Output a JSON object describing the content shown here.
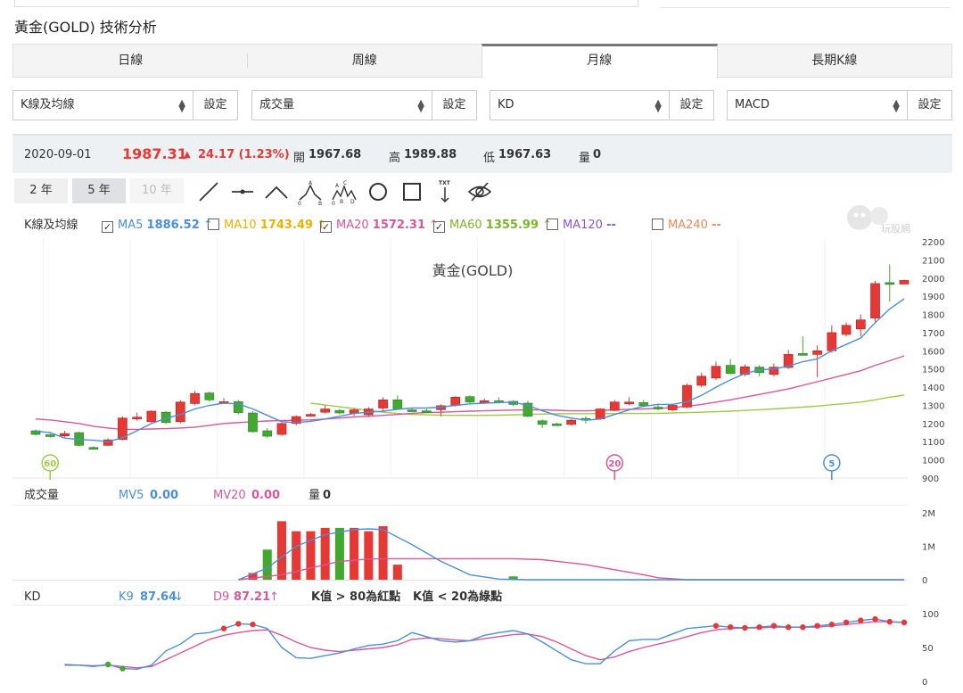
{
  "page_title": "黃金(GOLD) 技術分析",
  "tabs": [
    {
      "label": "日線",
      "active": false
    },
    {
      "label": "周線",
      "active": false
    },
    {
      "label": "月線",
      "active": true
    },
    {
      "label": "長期K線",
      "active": false
    }
  ],
  "selectors": [
    {
      "value": "K線及均線",
      "button": "設定"
    },
    {
      "value": "成交量",
      "button": "設定"
    },
    {
      "value": "KD",
      "button": "設定"
    },
    {
      "value": "MACD",
      "button": "設定"
    }
  ],
  "info": {
    "date": "2020-09-01",
    "price": "1987.31",
    "change": "24.17 (1.23%)",
    "open_label": "開",
    "open": "1967.68",
    "high_label": "高",
    "high": "1989.88",
    "low_label": "低",
    "low": "1967.63",
    "vol_label": "量",
    "vol": "0"
  },
  "periods": [
    {
      "label": "2 年",
      "state": "normal"
    },
    {
      "label": "5 年",
      "state": "active"
    },
    {
      "label": "10 年",
      "state": "disabled"
    }
  ],
  "tools": [
    "line-tool-icon",
    "horizontal-line-tool-icon",
    "peak-tool-icon",
    "abc-wave-tool-icon",
    "abcde-wave-tool-icon",
    "circle-tool-icon",
    "rectangle-tool-icon",
    "text-tool-icon",
    "hide-eye-icon"
  ],
  "tool_labels": {
    "txt": "TXT",
    "a": "A",
    "b": "B",
    "c": "C",
    "d": "D",
    "zero": "0"
  },
  "watermark": "玩股網",
  "k_legend": {
    "label": "K線及均線",
    "ma": [
      {
        "name": "MA5",
        "value": "1886.52",
        "arrow": "↑",
        "checked": true,
        "color": "#4a8fd8"
      },
      {
        "name": "MA10",
        "value": "1743.49",
        "arrow": "↑",
        "checked": false,
        "color": "#e8b300"
      },
      {
        "name": "MA20",
        "value": "1572.31",
        "arrow": "↑",
        "checked": true,
        "color": "#d6579a"
      },
      {
        "name": "MA60",
        "value": "1355.99",
        "arrow": "↑",
        "checked": true,
        "color": "#7ab52a"
      },
      {
        "name": "MA120",
        "value": "--",
        "arrow": "",
        "checked": false,
        "color": "#8a57c7"
      },
      {
        "name": "MA240",
        "value": "--",
        "arrow": "",
        "checked": false,
        "color": "#ea8a5a"
      }
    ]
  },
  "vol_legend": {
    "label": "成交量",
    "mv5_name": "MV5",
    "mv5": "0.00",
    "mv20_name": "MV20",
    "mv20": "0.00",
    "vol_name": "量",
    "vol": "0"
  },
  "kd_legend": {
    "label": "KD",
    "k_name": "K9",
    "k": "87.64",
    "k_arrow": "↓",
    "d_name": "D9",
    "d": "87.21",
    "d_arrow": "↑",
    "note_red": "K值 > 80為紅點",
    "note_green": "K值 < 20為綠點"
  },
  "colors": {
    "up": "#e53935",
    "down": "#43a82e",
    "ma5": "#4a8fd8",
    "ma20": "#d6579a",
    "ma60": "#9ccc44"
  },
  "chart_data": {
    "type": "candlestick",
    "title": "黃金(GOLD)",
    "y_ticks": [
      "2200",
      "2100",
      "2000",
      "1900",
      "1800",
      "1700",
      "1600",
      "1500",
      "1400",
      "1300",
      "1200",
      "1100",
      "1000",
      "900"
    ],
    "ylim": [
      900,
      2200
    ],
    "markers": [
      {
        "label": "60",
        "index": 1
      },
      {
        "label": "20",
        "index": 40
      },
      {
        "label": "5",
        "index": 55
      }
    ],
    "candles": [
      [
        1160,
        1140,
        1168,
        1135
      ],
      [
        1138,
        1130,
        1150,
        1122
      ],
      [
        1132,
        1145,
        1160,
        1125
      ],
      [
        1150,
        1080,
        1155,
        1075
      ],
      [
        1068,
        1065,
        1075,
        1058
      ],
      [
        1080,
        1110,
        1118,
        1078
      ],
      [
        1112,
        1230,
        1240,
        1108
      ],
      [
        1225,
        1235,
        1260,
        1215
      ],
      [
        1210,
        1268,
        1272,
        1205
      ],
      [
        1262,
        1205,
        1268,
        1198
      ],
      [
        1210,
        1318,
        1328,
        1202
      ],
      [
        1310,
        1365,
        1380,
        1300
      ],
      [
        1368,
        1330,
        1375,
        1320
      ],
      [
        1320,
        1320,
        1340,
        1310
      ],
      [
        1320,
        1260,
        1330,
        1250
      ],
      [
        1258,
        1155,
        1268,
        1150
      ],
      [
        1160,
        1130,
        1175,
        1120
      ],
      [
        1140,
        1200,
        1205,
        1135
      ],
      [
        1200,
        1238,
        1245,
        1190
      ],
      [
        1245,
        1250,
        1258,
        1238
      ],
      [
        1262,
        1280,
        1300,
        1255
      ],
      [
        1272,
        1258,
        1280,
        1250
      ],
      [
        1256,
        1275,
        1285,
        1242
      ],
      [
        1248,
        1280,
        1290,
        1236
      ],
      [
        1285,
        1330,
        1345,
        1268
      ],
      [
        1330,
        1280,
        1355,
        1275
      ],
      [
        1275,
        1272,
        1285,
        1262
      ],
      [
        1270,
        1265,
        1280,
        1262
      ],
      [
        1276,
        1298,
        1305,
        1240
      ],
      [
        1300,
        1345,
        1350,
        1292
      ],
      [
        1348,
        1318,
        1355,
        1305
      ],
      [
        1318,
        1325,
        1338,
        1310
      ],
      [
        1325,
        1320,
        1345,
        1310
      ],
      [
        1322,
        1305,
        1328,
        1296
      ],
      [
        1312,
        1240,
        1325,
        1235
      ],
      [
        1215,
        1195,
        1222,
        1175
      ],
      [
        1198,
        1195,
        1205,
        1190
      ],
      [
        1195,
        1218,
        1225,
        1190
      ],
      [
        1228,
        1220,
        1240,
        1200
      ],
      [
        1225,
        1280,
        1285,
        1220
      ],
      [
        1272,
        1318,
        1330,
        1268
      ],
      [
        1310,
        1318,
        1345,
        1300
      ],
      [
        1315,
        1298,
        1330,
        1290
      ],
      [
        1290,
        1280,
        1310,
        1272
      ],
      [
        1275,
        1300,
        1310,
        1268
      ],
      [
        1290,
        1410,
        1420,
        1285
      ],
      [
        1410,
        1460,
        1480,
        1400
      ],
      [
        1450,
        1515,
        1540,
        1440
      ],
      [
        1520,
        1475,
        1555,
        1470
      ],
      [
        1470,
        1512,
        1525,
        1460
      ],
      [
        1510,
        1480,
        1520,
        1460
      ],
      [
        1470,
        1510,
        1530,
        1460
      ],
      [
        1508,
        1580,
        1605,
        1500
      ],
      [
        1585,
        1582,
        1680,
        1575
      ],
      [
        1580,
        1600,
        1630,
        1455
      ],
      [
        1600,
        1700,
        1740,
        1590
      ],
      [
        1690,
        1740,
        1755,
        1680
      ],
      [
        1720,
        1770,
        1800,
        1680
      ],
      [
        1780,
        1970,
        1985,
        1760
      ],
      [
        1975,
        1965,
        2075,
        1870
      ],
      [
        1967,
        1987,
        1990,
        1967
      ]
    ],
    "ma5": [
      1158,
      1150,
      1120,
      1112,
      1108,
      1100,
      1122,
      1160,
      1200,
      1228,
      1250,
      1280,
      1300,
      1312,
      1308,
      1280,
      1245,
      1210,
      1205,
      1212,
      1225,
      1240,
      1255,
      1262,
      1268,
      1278,
      1285,
      1285,
      1290,
      1300,
      1308,
      1312,
      1315,
      1318,
      1300,
      1270,
      1245,
      1230,
      1218,
      1225,
      1250,
      1275,
      1295,
      1305,
      1305,
      1320,
      1355,
      1400,
      1440,
      1475,
      1495,
      1500,
      1515,
      1540,
      1555,
      1600,
      1635,
      1670,
      1755,
      1830,
      1886
    ],
    "ma20": [
      1225,
      1220,
      1210,
      1200,
      1185,
      1175,
      1168,
      1168,
      1170,
      1172,
      1175,
      1180,
      1190,
      1200,
      1205,
      1210,
      1214,
      1216,
      1218,
      1220,
      1225,
      1230,
      1236,
      1240,
      1245,
      1250,
      1256,
      1260,
      1262,
      1265,
      1268,
      1270,
      1272,
      1274,
      1275,
      1275,
      1273,
      1270,
      1270,
      1272,
      1275,
      1278,
      1280,
      1283,
      1288,
      1295,
      1305,
      1318,
      1330,
      1345,
      1360,
      1375,
      1390,
      1410,
      1430,
      1450,
      1470,
      1490,
      1520,
      1545,
      1572
    ],
    "ma60_start": 19,
    "ma60": [
      1312,
      1302,
      1292,
      1282,
      1272,
      1262,
      1255,
      1250,
      1248,
      1246,
      1245,
      1245,
      1245,
      1246,
      1248,
      1250,
      1252,
      1253,
      1254,
      1254,
      1254,
      1254,
      1255,
      1255,
      1256,
      1258,
      1260,
      1262,
      1265,
      1268,
      1272,
      1276,
      1280,
      1285,
      1290,
      1296,
      1303,
      1310,
      1318,
      1330,
      1345,
      1356
    ],
    "volume": {
      "ylim": [
        0,
        2000000
      ],
      "y_ticks": [
        "2M",
        "1M",
        "0"
      ],
      "bars": [
        [
          15,
          200000,
          "up"
        ],
        [
          16,
          900000,
          "down"
        ],
        [
          17,
          1750000,
          "up"
        ],
        [
          18,
          1450000,
          "up"
        ],
        [
          19,
          1450000,
          "up"
        ],
        [
          20,
          1550000,
          "up"
        ],
        [
          21,
          1550000,
          "down"
        ],
        [
          22,
          1550000,
          "up"
        ],
        [
          23,
          1450000,
          "up"
        ],
        [
          24,
          1600000,
          "up"
        ],
        [
          25,
          450000,
          "up"
        ],
        [
          33,
          100000,
          "down"
        ]
      ],
      "mv5": [
        [
          14,
          0
        ],
        [
          16,
          350000
        ],
        [
          18,
          1000000
        ],
        [
          20,
          1350000
        ],
        [
          22,
          1500000
        ],
        [
          23,
          1520000
        ],
        [
          24,
          1500000
        ],
        [
          26,
          1050000
        ],
        [
          28,
          550000
        ],
        [
          30,
          150000
        ],
        [
          32,
          20000
        ],
        [
          34,
          0
        ],
        [
          60,
          0
        ]
      ],
      "mv20": [
        [
          14,
          0
        ],
        [
          17,
          150000
        ],
        [
          19,
          350000
        ],
        [
          21,
          550000
        ],
        [
          23,
          620000
        ],
        [
          24,
          630000
        ],
        [
          33,
          630000
        ],
        [
          35,
          600000
        ],
        [
          38,
          450000
        ],
        [
          40,
          300000
        ],
        [
          42,
          150000
        ],
        [
          43,
          60000
        ],
        [
          45,
          0
        ],
        [
          60,
          0
        ]
      ]
    },
    "kd": {
      "ylim": [
        0,
        100
      ],
      "y_ticks": [
        "100",
        "50",
        "0"
      ],
      "k": [
        25,
        24,
        22,
        25,
        19,
        18,
        24,
        45,
        55,
        70,
        72,
        78,
        85,
        84,
        78,
        50,
        35,
        34,
        38,
        42,
        48,
        53,
        55,
        60,
        72,
        66,
        60,
        58,
        60,
        68,
        72,
        75,
        70,
        58,
        45,
        32,
        26,
        26,
        45,
        60,
        62,
        62,
        70,
        78,
        80,
        82,
        80,
        79,
        80,
        82,
        80,
        80,
        82,
        84,
        87,
        90,
        92,
        88,
        87
      ],
      "d": [
        24,
        24,
        23,
        24,
        22,
        20,
        22,
        32,
        42,
        52,
        62,
        68,
        72,
        75,
        76,
        68,
        58,
        50,
        46,
        44,
        46,
        48,
        50,
        54,
        62,
        64,
        63,
        61,
        60,
        63,
        66,
        69,
        70,
        66,
        58,
        48,
        38,
        32,
        36,
        44,
        50,
        55,
        60,
        66,
        72,
        76,
        78,
        79,
        79,
        80,
        80,
        80,
        80,
        82,
        84,
        86,
        88,
        88,
        87
      ],
      "red_dots": [
        11,
        12,
        13,
        45,
        46,
        47,
        48,
        49,
        50,
        51,
        52,
        53,
        54,
        55,
        56,
        57,
        58
      ],
      "green_dots": [
        3,
        4
      ]
    }
  }
}
